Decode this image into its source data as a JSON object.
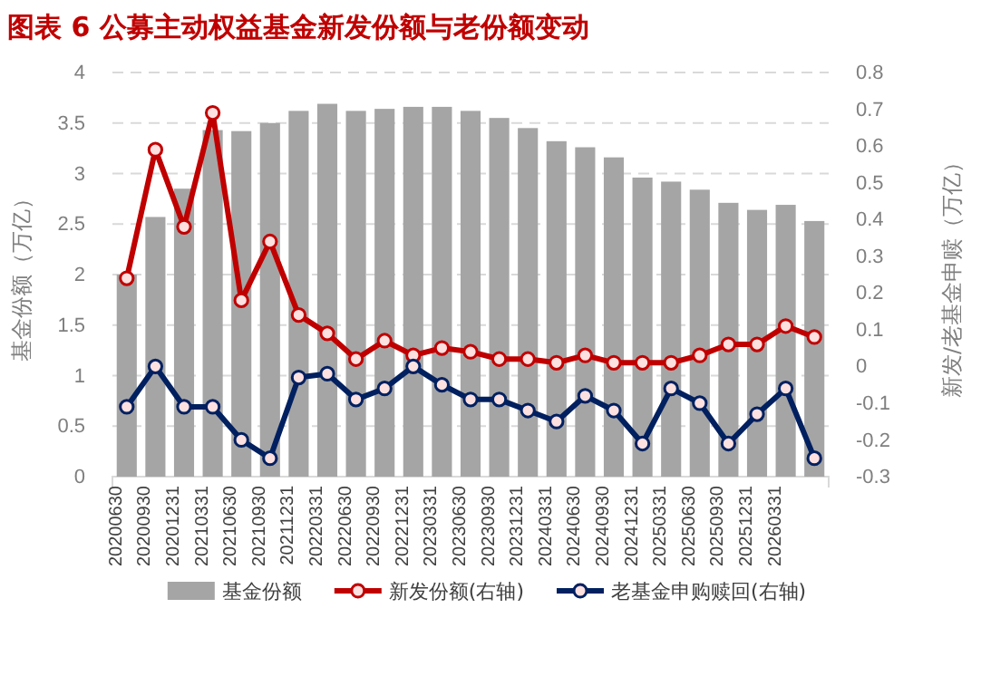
{
  "chart_data": {
    "type": "bar",
    "title": "图表 6 公募主动权益基金新发份额与老份额变动",
    "ylabel": "基金份额（万亿）",
    "y2label": "新发/老基金申赎（万亿）",
    "categories": [
      "20200630",
      "20200930",
      "20201231",
      "20210331",
      "20210630",
      "20210930",
      "20211231",
      "20220331",
      "20220630",
      "20220930",
      "20221231",
      "20230331",
      "20230630",
      "20230930",
      "20231231",
      "20240331",
      "20240630",
      "20240930",
      "20241231",
      "20250331",
      "20250630",
      "20250930",
      "20251231",
      "20260331",
      null
    ],
    "series": [
      {
        "name": "基金份额",
        "color": "#a5a5a5",
        "values": [
          2.0,
          2.57,
          2.85,
          3.43,
          3.42,
          3.5,
          3.62,
          3.69,
          3.62,
          3.64,
          3.66,
          3.66,
          3.62,
          3.55,
          3.45,
          3.32,
          3.26,
          3.16,
          2.96,
          2.92,
          2.84,
          2.71,
          2.64,
          2.69,
          2.53
        ]
      },
      {
        "name": "新发份额(右轴)",
        "type": "line",
        "axis": "y2",
        "color": "#c00000",
        "values": [
          0.24,
          0.59,
          0.38,
          0.69,
          0.18,
          0.34,
          0.14,
          0.09,
          0.02,
          0.07,
          0.03,
          0.05,
          0.04,
          0.02,
          0.02,
          0.01,
          0.03,
          0.01,
          0.01,
          0.01,
          0.03,
          0.06,
          0.06,
          0.11,
          0.08
        ]
      },
      {
        "name": "老基金申购赎回(右轴)",
        "type": "line",
        "axis": "y2",
        "color": "#002060",
        "values": [
          -0.11,
          0.0,
          -0.11,
          -0.11,
          -0.2,
          -0.25,
          -0.03,
          -0.02,
          -0.09,
          -0.06,
          0.0,
          -0.05,
          -0.09,
          -0.09,
          -0.12,
          -0.15,
          -0.08,
          -0.12,
          -0.21,
          -0.06,
          -0.1,
          -0.21,
          -0.13,
          -0.06,
          -0.25
        ]
      }
    ],
    "ylim": [
      0,
      4
    ],
    "yticks": [
      0,
      0.5,
      1,
      1.5,
      2,
      2.5,
      3,
      3.5,
      4
    ],
    "y2lim": [
      -0.3,
      0.8
    ],
    "y2ticks": [
      -0.3,
      -0.2,
      -0.1,
      0,
      0.1,
      0.2,
      0.3,
      0.4,
      0.5,
      0.6,
      0.7,
      0.8
    ],
    "grid": "y",
    "legend": "bottom",
    "marker": "circle",
    "line_style": "solid"
  }
}
